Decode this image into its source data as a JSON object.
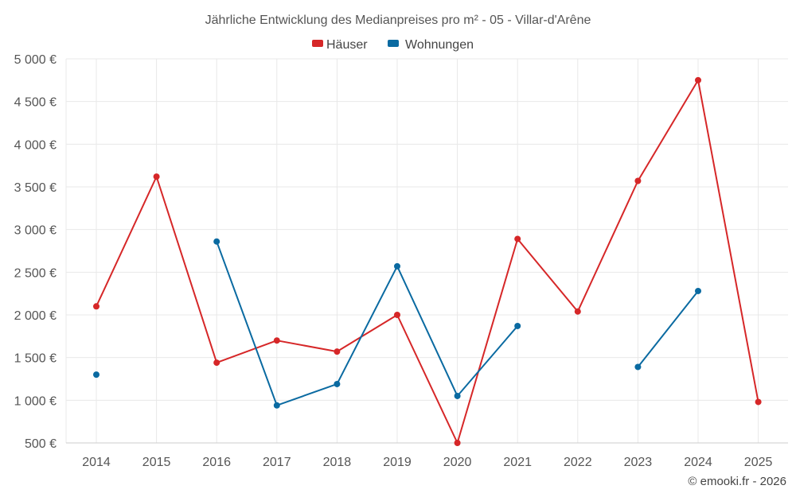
{
  "chart_data": {
    "type": "line",
    "title": "Jährliche Entwicklung des Medianpreises pro m² - 05 - Villar-d'Arêne",
    "categories": [
      "2014",
      "2015",
      "2016",
      "2017",
      "2018",
      "2019",
      "2020",
      "2021",
      "2022",
      "2023",
      "2024",
      "2025"
    ],
    "ylim": [
      500,
      5000
    ],
    "yticks": [
      500,
      1000,
      1500,
      2000,
      2500,
      3000,
      3500,
      4000,
      4500,
      5000
    ],
    "ytick_labels": [
      "500 €",
      "1 000 €",
      "1 500 €",
      "2 000 €",
      "2 500 €",
      "3 000 €",
      "3 500 €",
      "4 000 €",
      "4 500 €",
      "5 000 €"
    ],
    "grid": true,
    "legend_position": "top-center",
    "series": [
      {
        "name": "Häuser",
        "color": "#d62728",
        "values": [
          2100,
          3620,
          1440,
          1700,
          1570,
          2000,
          500,
          2890,
          2040,
          3570,
          4750,
          980
        ]
      },
      {
        "name": "Wohnungen",
        "color": "#0a6aa1",
        "values": [
          1300,
          null,
          2860,
          940,
          1190,
          2570,
          1050,
          1870,
          null,
          1390,
          2280,
          null
        ]
      }
    ],
    "credit": "© emooki.fr - 2026"
  }
}
